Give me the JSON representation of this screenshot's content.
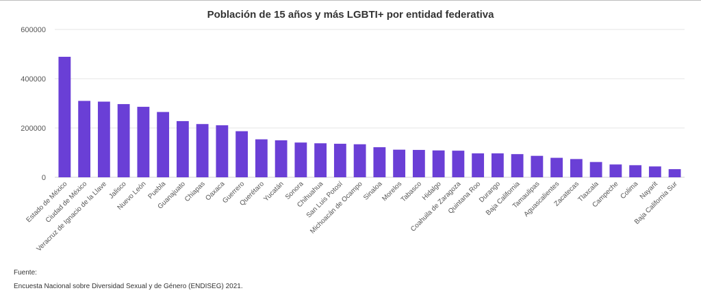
{
  "chart_data": {
    "type": "bar",
    "title": "Población de 15 años y más LGBTI+ por entidad federativa",
    "xlabel": "",
    "ylabel": "",
    "ylim": [
      0,
      600000
    ],
    "yticks": [
      "0",
      "200000",
      "400000",
      "600000"
    ],
    "grid": true,
    "bar_color": "#6a3fd6",
    "categories": [
      "Estado de México",
      "Ciudad de México",
      "Veracruz de Ignacio de la Llave",
      "Jalisco",
      "Nuevo León",
      "Puebla",
      "Guanajuato",
      "Chiapas",
      "Oaxaca",
      "Guerrero",
      "Querétaro",
      "Yucatán",
      "Sonora",
      "Chihuahua",
      "San Luis Potosí",
      "Michoacán de Ocampo",
      "Sinaloa",
      "Morelos",
      "Tabasco",
      "Hidalgo",
      "Coahuila de Zaragoza",
      "Quintana Roo",
      "Durango",
      "Baja California",
      "Tamaulipas",
      "Aguascalientes",
      "Zacatecas",
      "Tlaxcala",
      "Campeche",
      "Colima",
      "Nayarit",
      "Baja California Sur"
    ],
    "values": [
      489000,
      310000,
      307000,
      297000,
      286000,
      265000,
      228000,
      216000,
      211000,
      187000,
      154000,
      150000,
      141000,
      138000,
      136000,
      134000,
      122000,
      112000,
      111000,
      109000,
      108000,
      97000,
      97000,
      94000,
      87000,
      79000,
      74000,
      62000,
      52000,
      49000,
      44000,
      33000
    ]
  },
  "source": {
    "label": "Fuente:",
    "text": "Encuesta Nacional sobre Diversidad Sexual y de Género (ENDISEG) 2021."
  }
}
